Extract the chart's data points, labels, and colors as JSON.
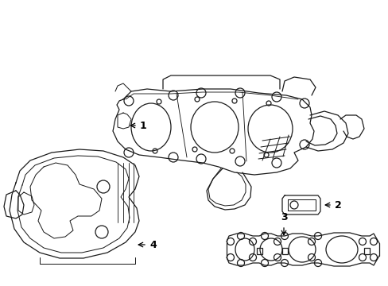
{
  "background_color": "#ffffff",
  "line_color": "#1a1a1a",
  "line_width": 0.9,
  "fig_w": 4.89,
  "fig_h": 3.6,
  "dpi": 100
}
